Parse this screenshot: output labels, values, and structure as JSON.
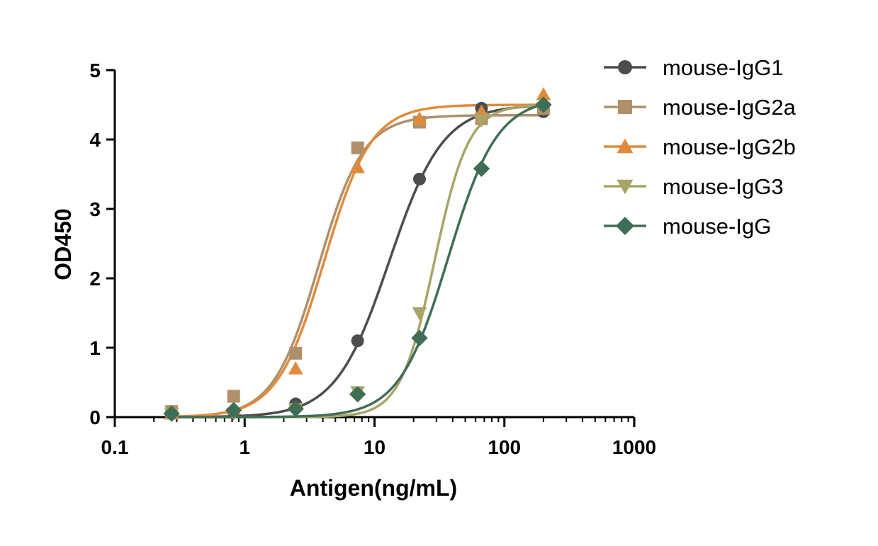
{
  "chart_data": {
    "type": "scatter",
    "title": "",
    "xlabel": "Antigen(ng/mL)",
    "ylabel": "OD450",
    "xscale": "log",
    "xlim": [
      0.1,
      1000
    ],
    "ylim": [
      0,
      5
    ],
    "x_ticks": [
      "0.1",
      "1",
      "10",
      "100",
      "1000"
    ],
    "y_ticks": [
      "0",
      "1",
      "2",
      "3",
      "4",
      "5"
    ],
    "grid": false,
    "legend_position": "top-right",
    "fit": "four-parameter logistic (sigmoidal) curve per series",
    "series": [
      {
        "name": "mouse-IgG1",
        "color": "#4d4d4f",
        "marker": "circle",
        "points": [
          [
            0.274,
            0.05
          ],
          [
            0.823,
            0.08
          ],
          [
            2.47,
            0.19
          ],
          [
            7.41,
            1.1
          ],
          [
            22.2,
            3.43
          ],
          [
            66.7,
            4.45
          ],
          [
            200,
            4.4
          ]
        ],
        "fit_params": {
          "bottom": 0.0,
          "top": 4.5,
          "ec50": 13.0,
          "hill": 2.1
        }
      },
      {
        "name": "mouse-IgG2a",
        "color": "#b0906a",
        "marker": "square",
        "points": [
          [
            0.274,
            0.08
          ],
          [
            0.823,
            0.3
          ],
          [
            2.47,
            0.92
          ],
          [
            7.41,
            3.88
          ],
          [
            22.2,
            4.25
          ],
          [
            66.7,
            4.3
          ],
          [
            200,
            4.45
          ]
        ],
        "fit_params": {
          "bottom": 0.0,
          "top": 4.35,
          "ec50": 3.7,
          "hill": 2.5
        }
      },
      {
        "name": "mouse-IgG2b",
        "color": "#e08b3c",
        "marker": "triangle-up",
        "points": [
          [
            0.274,
            0.05
          ],
          [
            0.823,
            0.12
          ],
          [
            2.47,
            0.7
          ],
          [
            7.41,
            3.6
          ],
          [
            22.2,
            4.3
          ],
          [
            66.7,
            4.4
          ],
          [
            200,
            4.65
          ]
        ],
        "fit_params": {
          "bottom": 0.0,
          "top": 4.5,
          "ec50": 4.1,
          "hill": 2.4
        }
      },
      {
        "name": "mouse-IgG3",
        "color": "#a9a566",
        "marker": "triangle-down",
        "points": [
          [
            0.274,
            0.05
          ],
          [
            0.823,
            0.05
          ],
          [
            2.47,
            0.12
          ],
          [
            7.41,
            0.36
          ],
          [
            22.2,
            1.5
          ],
          [
            66.7,
            4.28
          ],
          [
            200,
            4.45
          ]
        ],
        "fit_params": {
          "bottom": 0.0,
          "top": 4.5,
          "ec50": 29.0,
          "hill": 3.3
        }
      },
      {
        "name": "mouse-IgG",
        "color": "#3f6e56",
        "marker": "diamond",
        "points": [
          [
            0.274,
            0.05
          ],
          [
            0.823,
            0.1
          ],
          [
            2.47,
            0.12
          ],
          [
            7.41,
            0.33
          ],
          [
            22.2,
            1.14
          ],
          [
            66.7,
            3.58
          ],
          [
            200,
            4.5
          ]
        ],
        "fit_params": {
          "bottom": 0.0,
          "top": 4.6,
          "ec50": 37.0,
          "hill": 2.3
        }
      }
    ]
  }
}
